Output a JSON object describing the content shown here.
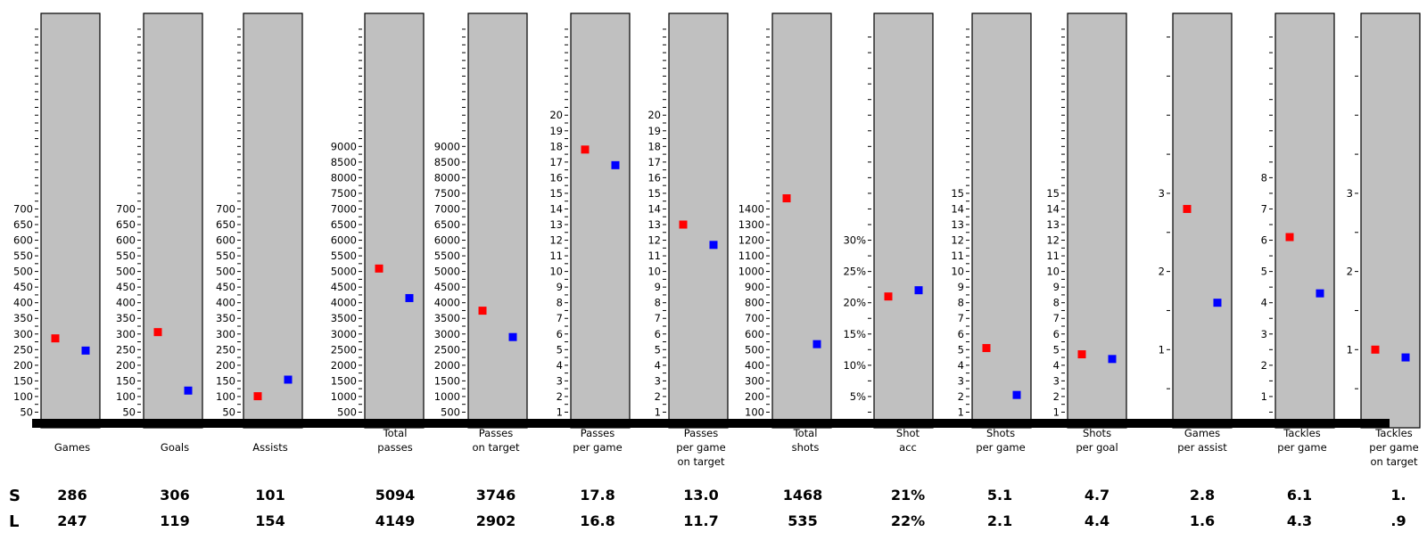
{
  "colors": {
    "panel": "#c0c0c0",
    "baseline": "#000000",
    "series_s": "#ff0000",
    "series_l": "#0000ff"
  },
  "rows": [
    "S",
    "L"
  ],
  "chart_data": {
    "type": "scatter",
    "series": [
      {
        "name": "S",
        "color": "#ff0000"
      },
      {
        "name": "L",
        "color": "#0000ff"
      }
    ],
    "panels": [
      {
        "id": "games",
        "label_lines": [
          "Games"
        ],
        "ticks": [
          "50",
          "100",
          "150",
          "200",
          "250",
          "300",
          "350",
          "400",
          "450",
          "500",
          "550",
          "600",
          "650",
          "700"
        ],
        "ylim": [
          0,
          1300
        ],
        "values": [
          286,
          247
        ],
        "display": [
          "286",
          "247"
        ]
      },
      {
        "id": "goals",
        "label_lines": [
          "Goals"
        ],
        "ticks": [
          "50",
          "100",
          "150",
          "200",
          "250",
          "300",
          "350",
          "400",
          "450",
          "500",
          "550",
          "600",
          "650",
          "700"
        ],
        "ylim": [
          0,
          1300
        ],
        "values": [
          306,
          119
        ],
        "display": [
          "306",
          "119"
        ]
      },
      {
        "id": "assists",
        "label_lines": [
          "Assists"
        ],
        "ticks": [
          "50",
          "100",
          "150",
          "200",
          "250",
          "300",
          "350",
          "400",
          "450",
          "500",
          "550",
          "600",
          "650",
          "700"
        ],
        "ylim": [
          0,
          1300
        ],
        "values": [
          101,
          154
        ],
        "display": [
          "101",
          "154"
        ]
      },
      {
        "id": "total-passes",
        "label_lines": [
          "Total",
          "passes"
        ],
        "ticks": [
          "500",
          "1000",
          "1500",
          "2000",
          "2500",
          "3000",
          "3500",
          "4000",
          "4500",
          "5000",
          "5500",
          "6000",
          "6500",
          "7000",
          "7500",
          "8000",
          "8500",
          "9000"
        ],
        "ylim": [
          0,
          13000
        ],
        "values": [
          5094,
          4149
        ],
        "display": [
          "5094",
          "4149"
        ]
      },
      {
        "id": "passes-on-target",
        "label_lines": [
          "Passes",
          "on target"
        ],
        "ticks": [
          "500",
          "1000",
          "1500",
          "2000",
          "2500",
          "3000",
          "3500",
          "4000",
          "4500",
          "5000",
          "5500",
          "6000",
          "6500",
          "7000",
          "7500",
          "8000",
          "8500",
          "9000"
        ],
        "ylim": [
          0,
          13000
        ],
        "values": [
          3746,
          2902
        ],
        "display": [
          "3746",
          "2902"
        ]
      },
      {
        "id": "passes-per-game",
        "label_lines": [
          "Passes",
          "per game"
        ],
        "ticks": [
          "1",
          "2",
          "3",
          "4",
          "5",
          "6",
          "7",
          "8",
          "9",
          "10",
          "11",
          "12",
          "13",
          "14",
          "15",
          "16",
          "17",
          "18",
          "19",
          "20"
        ],
        "ylim": [
          0,
          26
        ],
        "values": [
          17.8,
          16.8
        ],
        "display": [
          "17.8",
          "16.8"
        ]
      },
      {
        "id": "passes-per-game-on-target",
        "label_lines": [
          "Passes",
          "per game",
          "on target"
        ],
        "ticks": [
          "1",
          "2",
          "3",
          "4",
          "5",
          "6",
          "7",
          "8",
          "9",
          "10",
          "11",
          "12",
          "13",
          "14",
          "15",
          "16",
          "17",
          "18",
          "19",
          "20"
        ],
        "ylim": [
          0,
          26
        ],
        "values": [
          13.0,
          11.7
        ],
        "display": [
          "13.0",
          "11.7"
        ]
      },
      {
        "id": "total-shots",
        "label_lines": [
          "Total",
          "shots"
        ],
        "ticks": [
          "100",
          "200",
          "300",
          "400",
          "500",
          "600",
          "700",
          "800",
          "900",
          "1000",
          "1100",
          "1200",
          "1300",
          "1400"
        ],
        "ylim": [
          0,
          2600
        ],
        "values": [
          1468,
          535
        ],
        "display": [
          "1468",
          "535"
        ]
      },
      {
        "id": "shot-acc",
        "label_lines": [
          "Shot",
          "acc"
        ],
        "ticks": [
          "5%",
          "10%",
          "15%",
          "20%",
          "25%",
          "30%"
        ],
        "ylim": [
          0,
          65
        ],
        "values": [
          21,
          22
        ],
        "display": [
          "21%",
          "22%"
        ]
      },
      {
        "id": "shots-per-game",
        "label_lines": [
          "Shots",
          "per game"
        ],
        "ticks": [
          "1",
          "2",
          "3",
          "4",
          "5",
          "6",
          "7",
          "8",
          "9",
          "10",
          "11",
          "12",
          "13",
          "14",
          "15"
        ],
        "ylim": [
          0,
          26
        ],
        "values": [
          5.1,
          2.1
        ],
        "display": [
          "5.1",
          "2.1"
        ]
      },
      {
        "id": "shots-per-goal",
        "label_lines": [
          "Shots",
          "per goal"
        ],
        "ticks": [
          "1",
          "2",
          "3",
          "4",
          "5",
          "6",
          "7",
          "8",
          "9",
          "10",
          "11",
          "12",
          "13",
          "14",
          "15"
        ],
        "ylim": [
          0,
          26
        ],
        "values": [
          4.7,
          4.4
        ],
        "display": [
          "4.7",
          "4.4"
        ]
      },
      {
        "id": "games-per-assist",
        "label_lines": [
          "Games",
          "per assist"
        ],
        "ticks": [
          "1",
          "2",
          "3"
        ],
        "ylim": [
          0,
          5.2
        ],
        "values": [
          2.8,
          1.6
        ],
        "display": [
          "2.8",
          "1.6"
        ]
      },
      {
        "id": "tackles-per-game",
        "label_lines": [
          "Tackles",
          "per game"
        ],
        "ticks": [
          "1",
          "2",
          "3",
          "4",
          "5",
          "6",
          "7",
          "8"
        ],
        "ylim": [
          0,
          13
        ],
        "values": [
          6.1,
          4.3
        ],
        "display": [
          "6.1",
          "4.3"
        ]
      },
      {
        "id": "tackles-per-game-on-target",
        "label_lines": [
          "Tackles",
          "per game",
          "on target"
        ],
        "ticks": [
          "1",
          "2",
          "3"
        ],
        "ylim": [
          0,
          5.2
        ],
        "values": [
          1.0,
          0.9
        ],
        "display": [
          "1.",
          ".9"
        ]
      }
    ]
  }
}
